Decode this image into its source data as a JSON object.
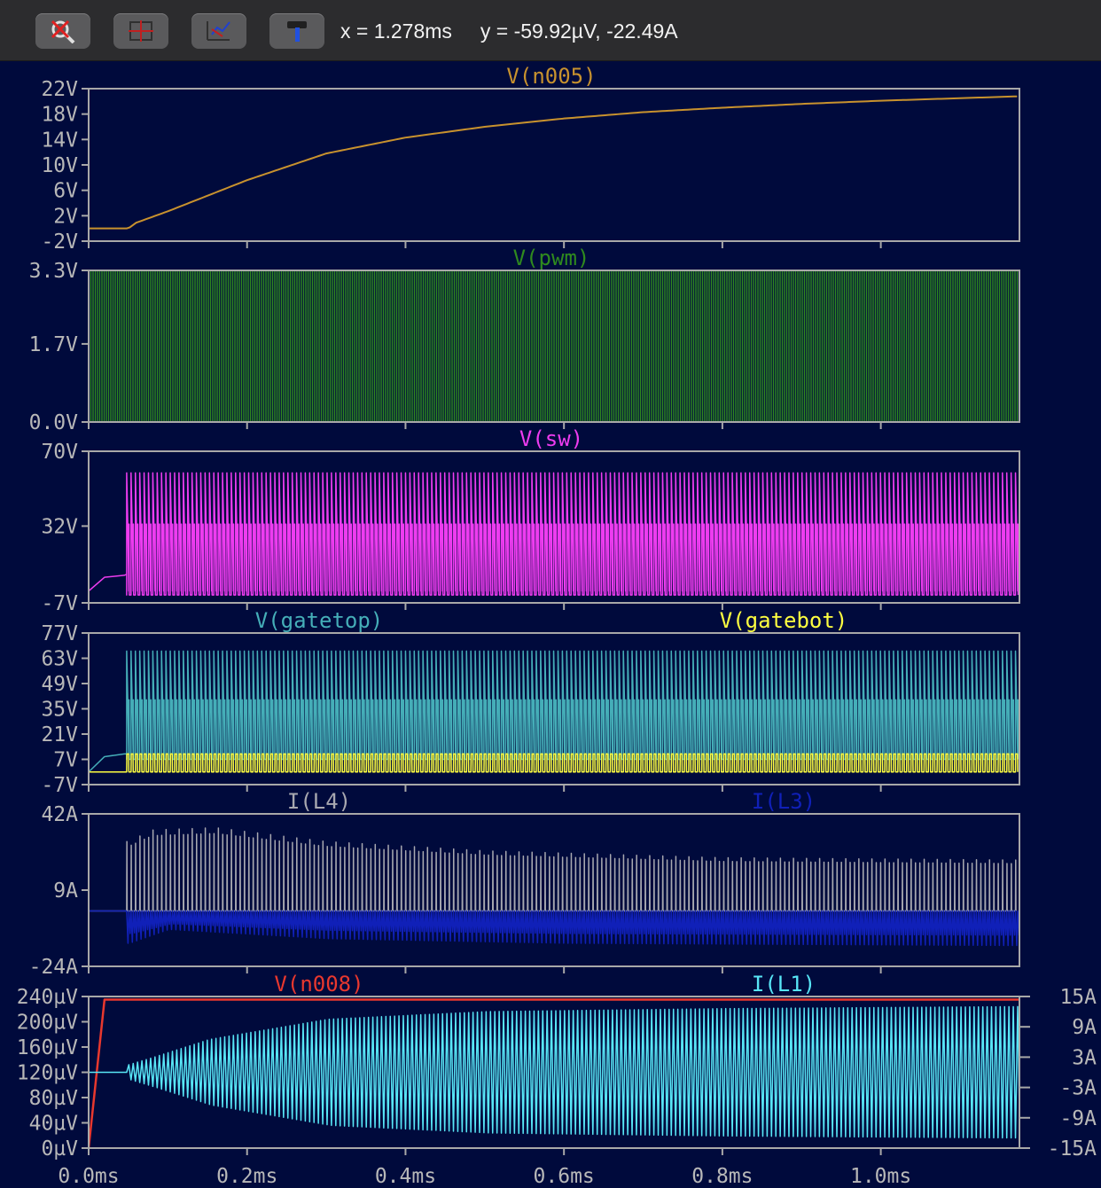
{
  "toolbar": {
    "buttons": [
      {
        "name": "probe-delete-icon"
      },
      {
        "name": "zoom-extents-icon"
      },
      {
        "name": "pan-icon"
      },
      {
        "name": "hammer-icon"
      }
    ],
    "readout": "x = 1.278ms     y = -59.92µV, -22.49A"
  },
  "colors": {
    "background": "#000a3c",
    "frame": "#a8a8a8",
    "label": "#b8b8b8",
    "n005": "#c8922e",
    "pwm": "#2f8a1e",
    "sw": "#ee3cf0",
    "gatetop": "#45aeb8",
    "gatebot": "#ffff40",
    "L4": "#a8a8b0",
    "L3": "#1020b8",
    "n008": "#e8382e",
    "L1": "#58e6f6"
  },
  "chart_data": {
    "type": "line",
    "xlabel": "",
    "x_range_ms": [
      0,
      1.175
    ],
    "x_ticks": [
      "0.0ms",
      "0.2ms",
      "0.4ms",
      "0.6ms",
      "0.8ms",
      "1.0ms"
    ],
    "x_tick_values": [
      0,
      0.2,
      0.4,
      0.6,
      0.8,
      1.0
    ],
    "panes": [
      {
        "id": "n005",
        "series": [
          {
            "name": "V(n005)",
            "x": [
              0,
              0.05,
              0.06,
              0.1,
              0.2,
              0.3,
              0.4,
              0.5,
              0.6,
              0.7,
              0.8,
              0.9,
              1.0,
              1.175
            ],
            "y": [
              0,
              0,
              0.9,
              2.7,
              7.6,
              11.8,
              14.3,
              16.0,
              17.3,
              18.3,
              19.0,
              19.6,
              20.1,
              20.8
            ]
          }
        ],
        "ylim": [
          -2,
          22
        ],
        "y_ticks": [
          "22V",
          "18V",
          "14V",
          "10V",
          "6V",
          "2V",
          "-2V"
        ],
        "y_tick_values": [
          22,
          18,
          14,
          10,
          6,
          2,
          -2
        ]
      },
      {
        "id": "pwm",
        "series": [
          {
            "name": "V(pwm)",
            "low": 0,
            "high": 3.3
          }
        ],
        "ylim": [
          0,
          3.3
        ],
        "y_ticks": [
          "3.3V",
          "1.7V",
          "0.0V"
        ],
        "y_tick_values": [
          3.3,
          1.7,
          0
        ]
      },
      {
        "id": "sw",
        "series": [
          {
            "name": "V(sw)",
            "pre_x": [
              0,
              0.02,
              0.045,
              0.048
            ],
            "pre_y": [
              -1,
              6,
              7,
              7.5
            ],
            "start_ms": 0.048,
            "low": -3,
            "high": 59,
            "mid": 33
          }
        ],
        "ylim": [
          -7,
          70
        ],
        "y_ticks": [
          "70V",
          "32V",
          "-7V"
        ],
        "y_tick_values": [
          70,
          32,
          -7
        ]
      },
      {
        "id": "gates",
        "series": [
          {
            "name": "V(gatetop)",
            "pre_x": [
              0,
              0.02,
              0.045,
              0.048
            ],
            "pre_y": [
              0,
              8.5,
              10,
              10
            ],
            "start_ms": 0.048,
            "low": 7,
            "high": 67,
            "mid": 40
          },
          {
            "name": "V(gatebot)",
            "start_ms": 0.048,
            "low": 0,
            "high": 10
          }
        ],
        "ylim": [
          -7,
          77
        ],
        "y_ticks": [
          "77V",
          "63V",
          "49V",
          "35V",
          "21V",
          "7V",
          "-7V"
        ],
        "y_tick_values": [
          77,
          63,
          49,
          35,
          21,
          7,
          -7
        ]
      },
      {
        "id": "currents",
        "series": [
          {
            "name": "I(L4)",
            "start_ms": 0.048,
            "base": 0,
            "peak_x": [
              0.05,
              0.08,
              0.16,
              0.3,
              0.5,
              0.8,
              1.175
            ],
            "peak_y": [
              30,
              35,
              36,
              30,
              26,
              23,
              22
            ]
          },
          {
            "name": "I(L3)",
            "start_ms": 0.048,
            "base": 0,
            "low_x": [
              0.05,
              0.1,
              0.3,
              0.6,
              1.175
            ],
            "low_y": [
              -14,
              -8,
              -12,
              -14,
              -15
            ]
          }
        ],
        "ylim": [
          -24,
          42
        ],
        "y_ticks": [
          "42A",
          "9A",
          "-24A"
        ],
        "y_tick_values": [
          42,
          9,
          -24
        ]
      },
      {
        "id": "bottom",
        "series": [
          {
            "name": "V(n008)",
            "axis": "left",
            "x": [
              0,
              0.02,
              1.175
            ],
            "y": [
              0,
              235,
              235
            ]
          },
          {
            "name": "I(L1)",
            "axis": "right",
            "start_ms": 0.048,
            "amp_x": [
              0.048,
              0.08,
              0.15,
              0.3,
              0.5,
              0.8,
              1.175
            ],
            "amp_y": [
              1.5,
              3,
              6.5,
              10.5,
              12,
              12.6,
              13
            ]
          }
        ],
        "ylim": [
          0,
          240
        ],
        "y_ticks": [
          "240µV",
          "200µV",
          "160µV",
          "120µV",
          "80µV",
          "40µV",
          "0µV"
        ],
        "y_tick_values": [
          240,
          200,
          160,
          120,
          80,
          40,
          0
        ],
        "y2lim": [
          -15,
          15
        ],
        "y2_ticks": [
          "15A",
          "9A",
          "3A",
          "-3A",
          "-9A",
          "-15A"
        ],
        "y2_tick_values": [
          15,
          9,
          3,
          -3,
          -9,
          -15
        ]
      }
    ]
  }
}
